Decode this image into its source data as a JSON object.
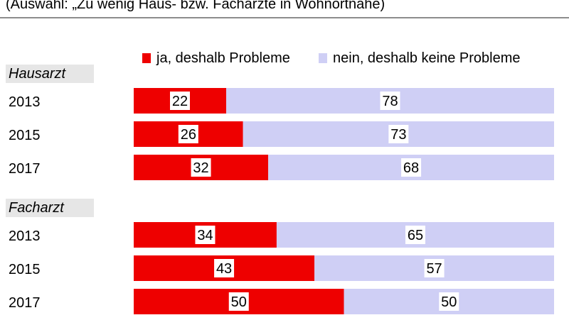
{
  "subtitle": "(Auswahl: „Zu wenig Haus- bzw. Fachärzte in Wohnortnähe)",
  "colors": {
    "yes": "#ee0000",
    "no": "#cfcff5",
    "rule": "#8c8c8c",
    "group_bg": "#e6e6e6"
  },
  "chart_data": {
    "type": "bar",
    "orientation": "horizontal",
    "stacked": true,
    "title": "",
    "legend": [
      {
        "label": "ja, deshalb Probleme",
        "color": "#ee0000"
      },
      {
        "label": "nein, deshalb keine Probleme",
        "color": "#cfcff5"
      }
    ],
    "legend_position": "top-right",
    "groups": [
      {
        "name": "Hausarzt",
        "rows": [
          {
            "year": "2013",
            "yes": 22,
            "no": 78
          },
          {
            "year": "2015",
            "yes": 26,
            "no": 73
          },
          {
            "year": "2017",
            "yes": 32,
            "no": 68
          }
        ]
      },
      {
        "name": "Facharzt",
        "rows": [
          {
            "year": "2013",
            "yes": 34,
            "no": 65
          },
          {
            "year": "2015",
            "yes": 43,
            "no": 57
          },
          {
            "year": "2017",
            "yes": 50,
            "no": 50
          }
        ]
      }
    ],
    "xlim": [
      0,
      100
    ],
    "grid": false
  }
}
